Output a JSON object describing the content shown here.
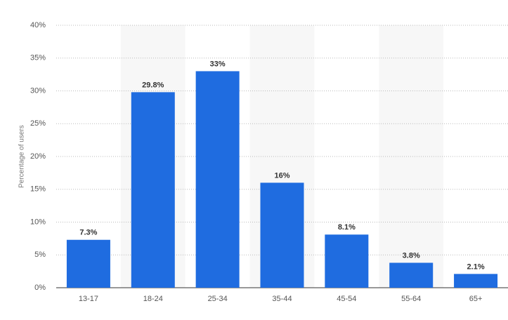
{
  "chart_data": {
    "type": "bar",
    "y_label": "Percentage of users",
    "categories": [
      "13-17",
      "18-24",
      "25-34",
      "35-44",
      "45-54",
      "55-64",
      "65+"
    ],
    "values": [
      7.3,
      29.8,
      33,
      16,
      8.1,
      3.8,
      2.1
    ],
    "value_labels": [
      "7.3%",
      "29.8%",
      "33%",
      "16%",
      "8.1%",
      "3.8%",
      "2.1%"
    ],
    "color": "#1f6ce0",
    "ylim": [
      0,
      40
    ],
    "yticks": [
      {
        "value": 0,
        "label": "0%"
      },
      {
        "value": 5,
        "label": "5%"
      },
      {
        "value": 10,
        "label": "10%"
      },
      {
        "value": 15,
        "label": "15%"
      },
      {
        "value": 20,
        "label": "20%"
      },
      {
        "value": 25,
        "label": "25%"
      },
      {
        "value": 30,
        "label": "30%"
      },
      {
        "value": 35,
        "label": "35%"
      },
      {
        "value": 40,
        "label": "40%"
      }
    ],
    "grid": true
  }
}
